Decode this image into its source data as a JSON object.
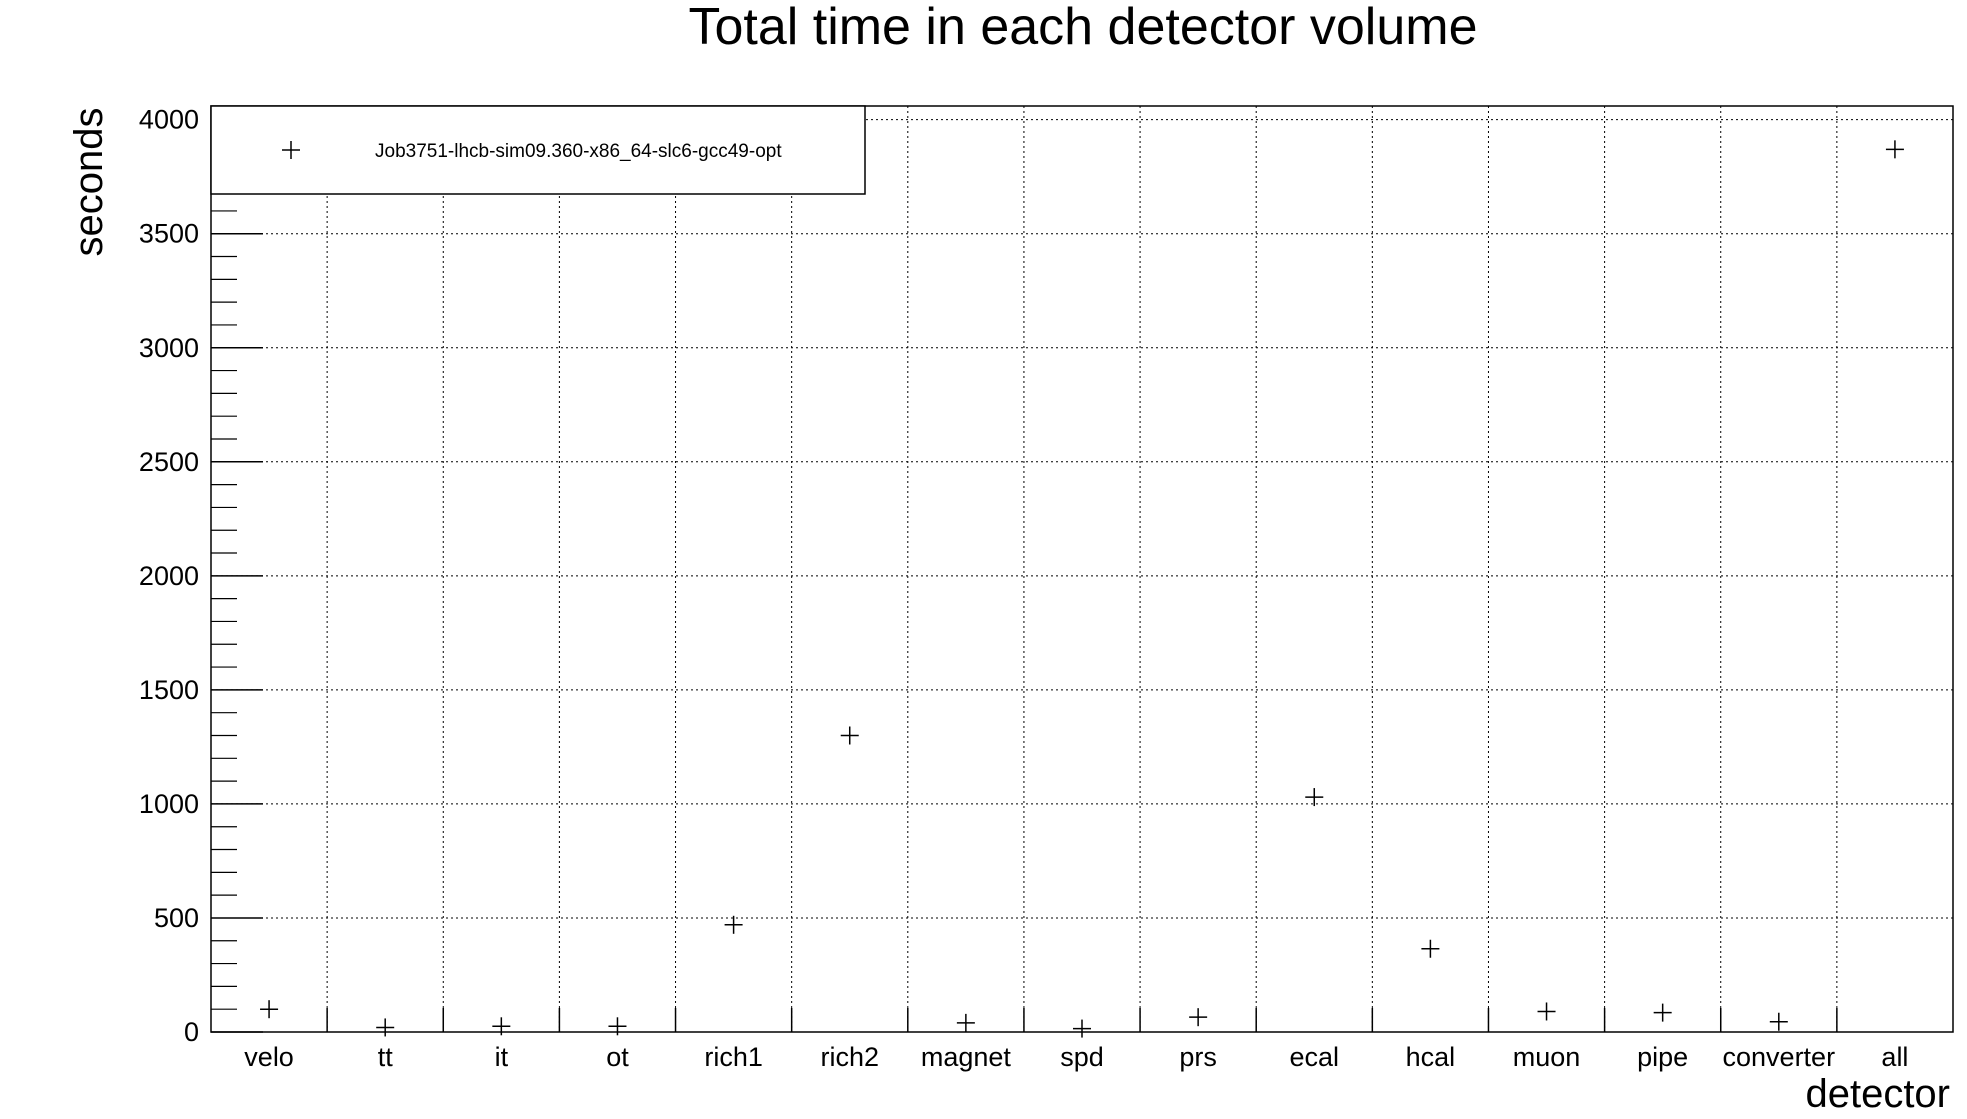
{
  "chart_data": {
    "type": "scatter",
    "title": "Total time in each detector volume",
    "xlabel": "detector",
    "ylabel": "seconds",
    "categories": [
      "velo",
      "tt",
      "it",
      "ot",
      "rich1",
      "rich2",
      "magnet",
      "spd",
      "prs",
      "ecal",
      "hcal",
      "muon",
      "pipe",
      "converter",
      "all"
    ],
    "series": [
      {
        "name": "Job3751-lhcb-sim09.360-x86_64-slc6-gcc49-opt",
        "values": [
          100,
          20,
          25,
          25,
          470,
          1300,
          40,
          15,
          65,
          1030,
          365,
          90,
          85,
          45,
          3870
        ],
        "marker": "+",
        "color": "#000000"
      }
    ],
    "ylim": [
      0,
      4060
    ],
    "yticks": [
      0,
      500,
      1000,
      1500,
      2000,
      2500,
      3000,
      3500,
      4000
    ],
    "grid": true,
    "legend_position": "top-left"
  }
}
